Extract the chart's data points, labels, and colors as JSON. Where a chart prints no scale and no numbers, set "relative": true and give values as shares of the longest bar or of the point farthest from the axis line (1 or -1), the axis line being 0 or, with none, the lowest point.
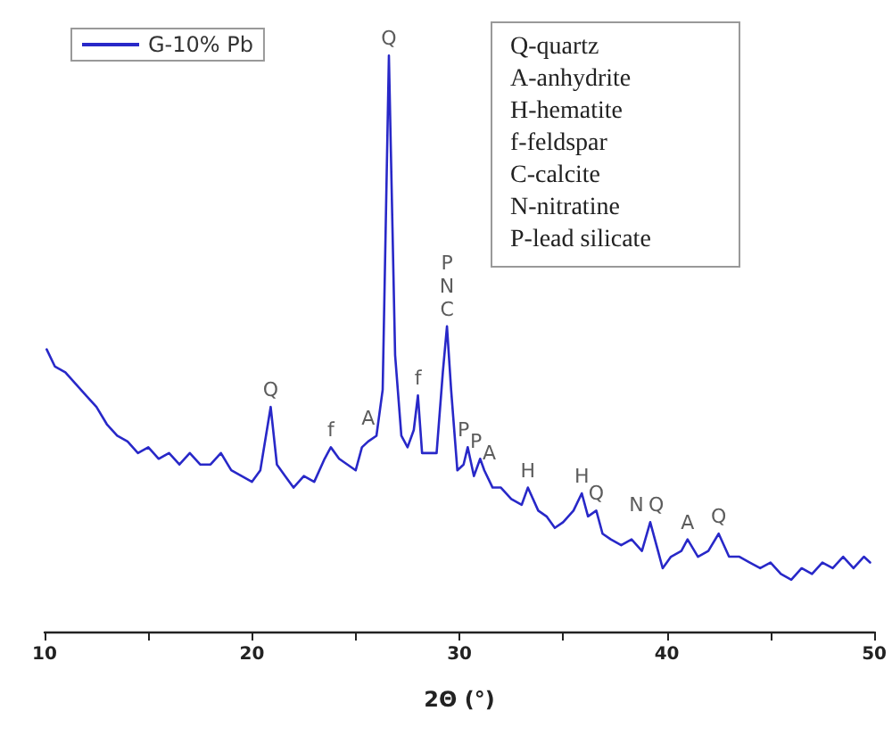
{
  "chart_data": {
    "type": "line",
    "relative": true,
    "xlabel": "2Θ (°)",
    "xlim": [
      10,
      50
    ],
    "xticks": [
      10,
      {
        "value": 15,
        "label": null
      },
      20,
      {
        "value": 25,
        "label": null
      },
      30,
      {
        "value": 35,
        "label": null
      },
      40,
      {
        "value": 45,
        "label": null
      },
      50
    ],
    "grid": false,
    "legend": "top left",
    "marker": "none",
    "line_style": "solid",
    "series": [
      {
        "name": "G-10% Pb",
        "color": "#2828c8",
        "x": [
          10.1,
          10.5,
          11.0,
          11.5,
          12.0,
          12.5,
          13.0,
          13.5,
          14.0,
          14.5,
          15.0,
          15.5,
          16.0,
          16.5,
          17.0,
          17.5,
          18.0,
          18.5,
          19.0,
          19.5,
          20.0,
          20.4,
          20.9,
          21.2,
          21.6,
          22.0,
          22.5,
          23.0,
          23.5,
          23.8,
          24.2,
          24.6,
          25.0,
          25.3,
          25.6,
          26.0,
          26.3,
          26.6,
          26.9,
          27.2,
          27.5,
          27.8,
          28.0,
          28.2,
          28.5,
          28.9,
          29.2,
          29.4,
          29.6,
          29.9,
          30.2,
          30.4,
          30.7,
          31.0,
          31.2,
          31.6,
          32.0,
          32.5,
          33.0,
          33.3,
          33.8,
          34.2,
          34.6,
          35.0,
          35.5,
          35.9,
          36.2,
          36.6,
          36.9,
          37.3,
          37.8,
          38.3,
          38.8,
          39.2,
          39.5,
          39.8,
          40.2,
          40.7,
          41.0,
          41.5,
          42.0,
          42.5,
          43.0,
          43.5,
          44.0,
          44.5,
          45.0,
          45.5,
          46.0,
          46.5,
          47.0,
          47.5,
          48.0,
          48.5,
          49.0,
          49.5,
          49.8
        ],
        "values": [
          0.49,
          0.46,
          0.45,
          0.43,
          0.41,
          0.39,
          0.36,
          0.34,
          0.33,
          0.31,
          0.32,
          0.3,
          0.31,
          0.29,
          0.31,
          0.29,
          0.29,
          0.31,
          0.28,
          0.27,
          0.26,
          0.28,
          0.39,
          0.29,
          0.27,
          0.25,
          0.27,
          0.26,
          0.3,
          0.32,
          0.3,
          0.29,
          0.28,
          0.32,
          0.33,
          0.34,
          0.42,
          1,
          0.48,
          0.34,
          0.32,
          0.35,
          0.41,
          0.31,
          0.31,
          0.31,
          0.45,
          0.53,
          0.42,
          0.28,
          0.29,
          0.32,
          0.27,
          0.3,
          0.28,
          0.25,
          0.25,
          0.23,
          0.22,
          0.25,
          0.21,
          0.2,
          0.18,
          0.19,
          0.21,
          0.24,
          0.2,
          0.21,
          0.17,
          0.16,
          0.15,
          0.16,
          0.14,
          0.19,
          0.15,
          0.11,
          0.13,
          0.14,
          0.16,
          0.13,
          0.14,
          0.17,
          0.13,
          0.13,
          0.12,
          0.11,
          0.12,
          0.1,
          0.09,
          0.11,
          0.1,
          0.12,
          0.11,
          0.13,
          0.11,
          0.13,
          0.12
        ]
      }
    ],
    "annotations": [
      {
        "text": "Q",
        "x": 20.9,
        "y": 0.39
      },
      {
        "text": "f",
        "x": 23.8,
        "y": 0.32
      },
      {
        "text": "A",
        "x": 25.6,
        "y": 0.34
      },
      {
        "text": "Q",
        "x": 26.6,
        "y": 1
      },
      {
        "text": "f",
        "x": 28.0,
        "y": 0.41
      },
      {
        "text": "C",
        "x": 29.4,
        "y": 0.53
      },
      {
        "text": "N",
        "x": 29.4,
        "y": 0.53
      },
      {
        "text": "P",
        "x": 29.4,
        "y": 0.53
      },
      {
        "text": "P",
        "x": 30.4,
        "y": 0.32
      },
      {
        "text": "P",
        "x": 31.0,
        "y": 0.3
      },
      {
        "text": "A",
        "x": 31.2,
        "y": 0.28
      },
      {
        "text": "H",
        "x": 33.3,
        "y": 0.25
      },
      {
        "text": "H",
        "x": 35.9,
        "y": 0.24
      },
      {
        "text": "Q",
        "x": 36.6,
        "y": 0.21
      },
      {
        "text": "N",
        "x": 38.8,
        "y": 0.19
      },
      {
        "text": "Q",
        "x": 39.2,
        "y": 0.19
      },
      {
        "text": "A",
        "x": 41.0,
        "y": 0.16
      },
      {
        "text": "Q",
        "x": 42.5,
        "y": 0.17
      },
      "Q-quartz",
      "A-anhydrite",
      "H-hematite",
      "f-feldspar",
      "C-calcite",
      "N-nitratine",
      "P-lead silicate"
    ]
  }
}
